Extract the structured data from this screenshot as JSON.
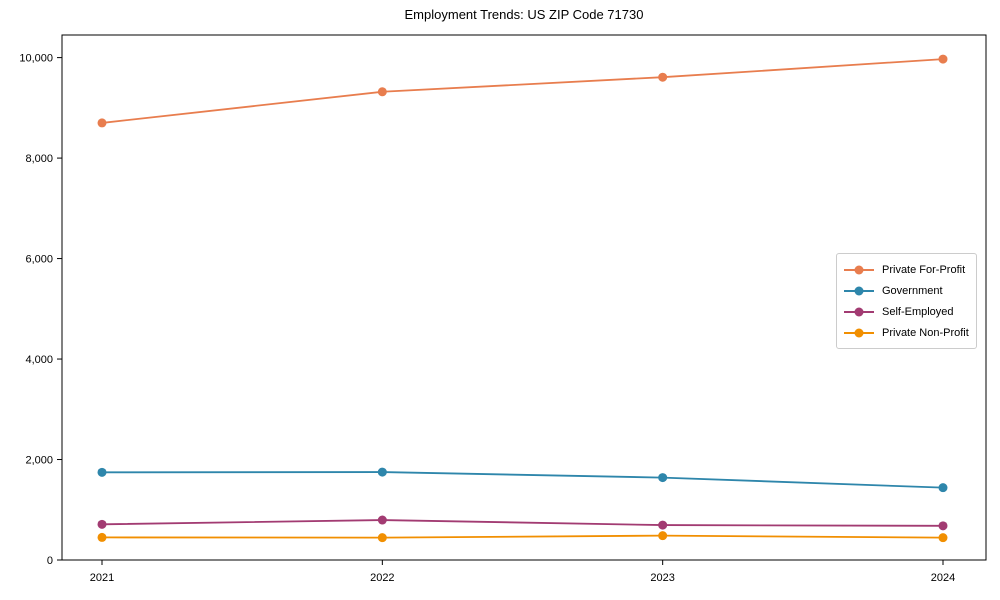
{
  "figure": {
    "background": "#ffffff",
    "axes_color": "#000000",
    "tick_label_color": "#000000"
  },
  "chart_data": {
    "type": "line",
    "title": "Employment Trends: US ZIP Code 71730",
    "xlabel": "",
    "ylabel": "",
    "categories": [
      "2021",
      "2022",
      "2023",
      "2024"
    ],
    "series": [
      {
        "name": "Private For-Profit",
        "color": "#e87d4e",
        "values": [
          8700,
          9320,
          9610,
          9970
        ]
      },
      {
        "name": "Government",
        "color": "#2e86ab",
        "values": [
          1745,
          1750,
          1640,
          1440
        ]
      },
      {
        "name": "Self-Employed",
        "color": "#a23b72",
        "values": [
          710,
          795,
          695,
          680
        ]
      },
      {
        "name": "Private Non-Profit",
        "color": "#f18f01",
        "values": [
          450,
          445,
          485,
          445
        ]
      }
    ],
    "ylim": [
      0,
      10450
    ],
    "yticks": [
      0,
      2000,
      4000,
      6000,
      8000,
      10000
    ],
    "ytick_labels": [
      "0",
      "2,000",
      "4,000",
      "6,000",
      "8,000",
      "10,000"
    ],
    "grid": false,
    "marker": "circle",
    "legend_position": "center right"
  }
}
